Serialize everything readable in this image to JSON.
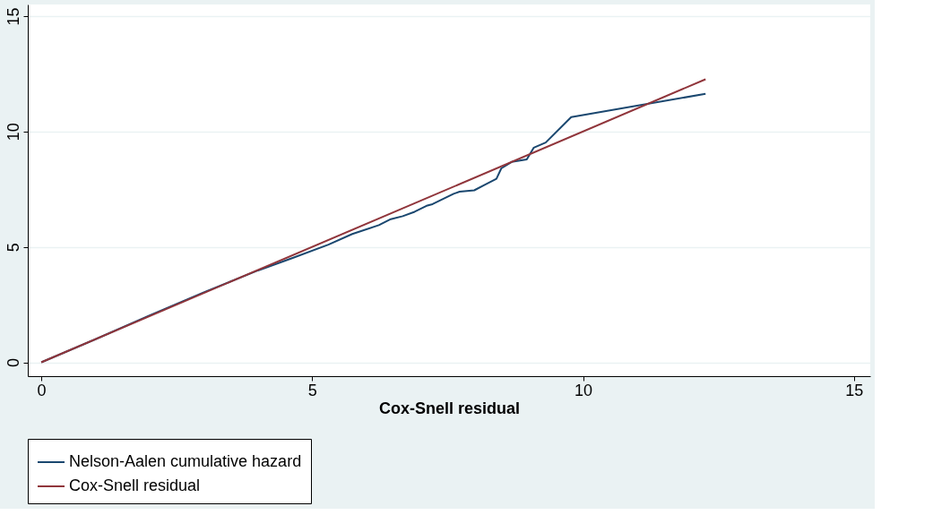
{
  "chart_data": {
    "type": "line",
    "xlabel": "Cox-Snell residual",
    "series": [
      {
        "name": "Nelson-Aalen cumulative hazard",
        "color": "#1a476f",
        "x": [
          0,
          1,
          2,
          3,
          4,
          4.64,
          5.3,
          5.74,
          6.23,
          6.45,
          6.67,
          6.89,
          7.11,
          7.22,
          7.61,
          7.72,
          7.99,
          8.16,
          8.4,
          8.49,
          8.68,
          8.96,
          9.09,
          9.31,
          9.78,
          12.26
        ],
        "values": [
          0,
          1.0,
          2.03,
          3.03,
          3.98,
          4.52,
          5.1,
          5.56,
          5.94,
          6.2,
          6.33,
          6.52,
          6.78,
          6.85,
          7.3,
          7.39,
          7.45,
          7.66,
          7.95,
          8.4,
          8.68,
          8.79,
          9.3,
          9.52,
          10.62,
          11.63
        ]
      },
      {
        "name": "Cox-Snell residual",
        "color": "#90353b",
        "x": [
          0,
          12.26
        ],
        "values": [
          0,
          12.26
        ]
      }
    ],
    "xlim": [
      -0.25,
      15.3
    ],
    "ylim": [
      -0.6,
      15.5
    ],
    "xticks": [
      0,
      5,
      10,
      15
    ],
    "yticks": [
      0,
      5,
      10,
      15
    ],
    "grid": "y",
    "legend": "bottom",
    "line_style": "solid",
    "marker": "none"
  }
}
